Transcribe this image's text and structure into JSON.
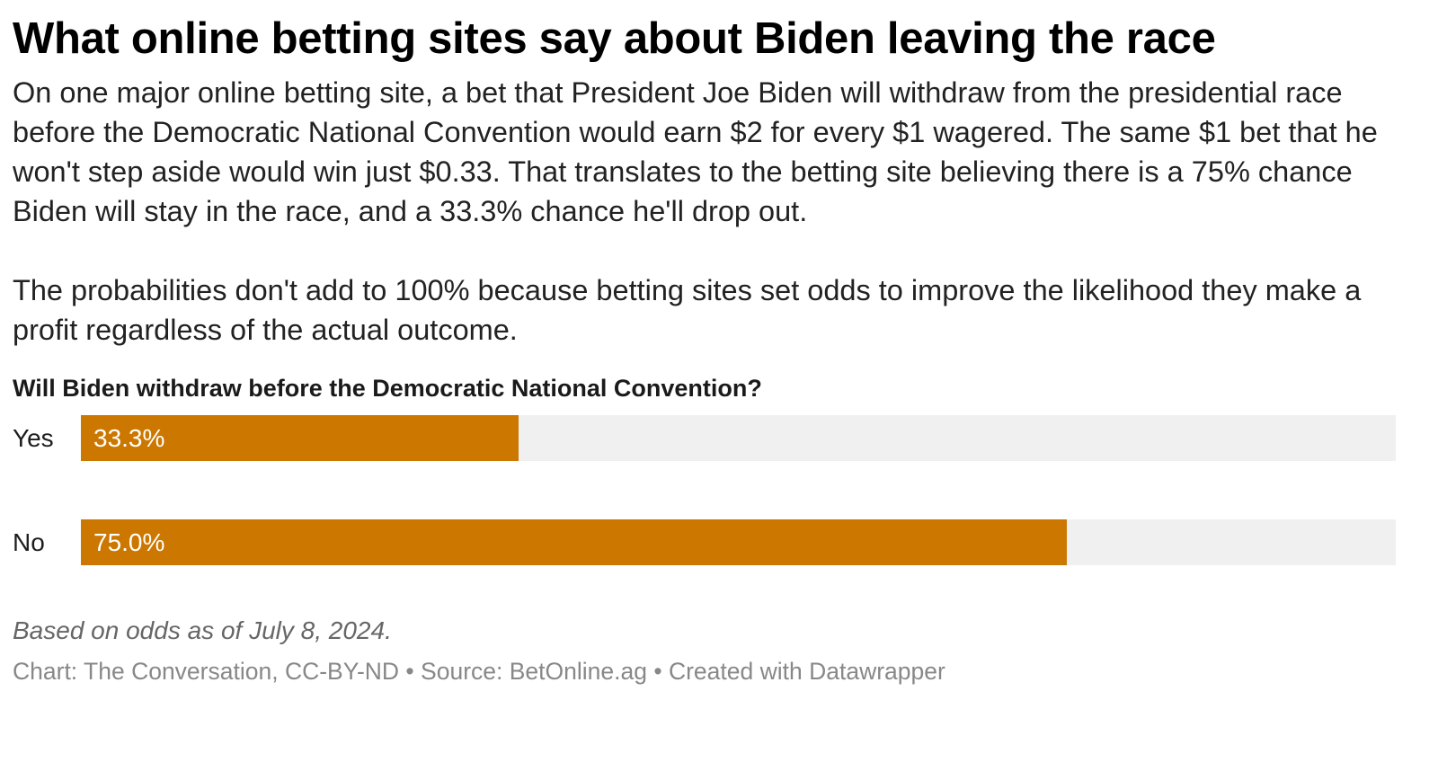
{
  "title": "What online betting sites say about Biden leaving the race",
  "description": [
    "On one major online betting site, a bet that President Joe Biden will withdraw from the presidential race before the Democratic National Convention would earn $2 for every $1 wagered. The same $1 bet that he won't step aside would win just $0.33. That translates to the betting site believing there is a 75% chance Biden will stay in the race, and a 33.3% chance he'll drop out.",
    "The probabilities don't add to 100% because betting sites set odds to improve the likelihood they make a profit regardless of the actual outcome."
  ],
  "chart_data": {
    "type": "bar",
    "orientation": "horizontal",
    "title": "Will Biden withdraw before the Democratic National Convention?",
    "categories": [
      "Yes",
      "No"
    ],
    "values": [
      33.3,
      75.0
    ],
    "value_labels": [
      "33.3%",
      "75.0%"
    ],
    "unit": "%",
    "xlim": [
      0,
      100
    ],
    "grid": false,
    "legend": "none",
    "colors": {
      "bar": "#cc7700",
      "track": "#f0f0f0",
      "value_text": "#ffffff"
    }
  },
  "notes": "Based on odds as of July 8, 2024.",
  "footer": "Chart: The Conversation, CC-BY-ND • Source: BetOnline.ag • Created with Datawrapper"
}
